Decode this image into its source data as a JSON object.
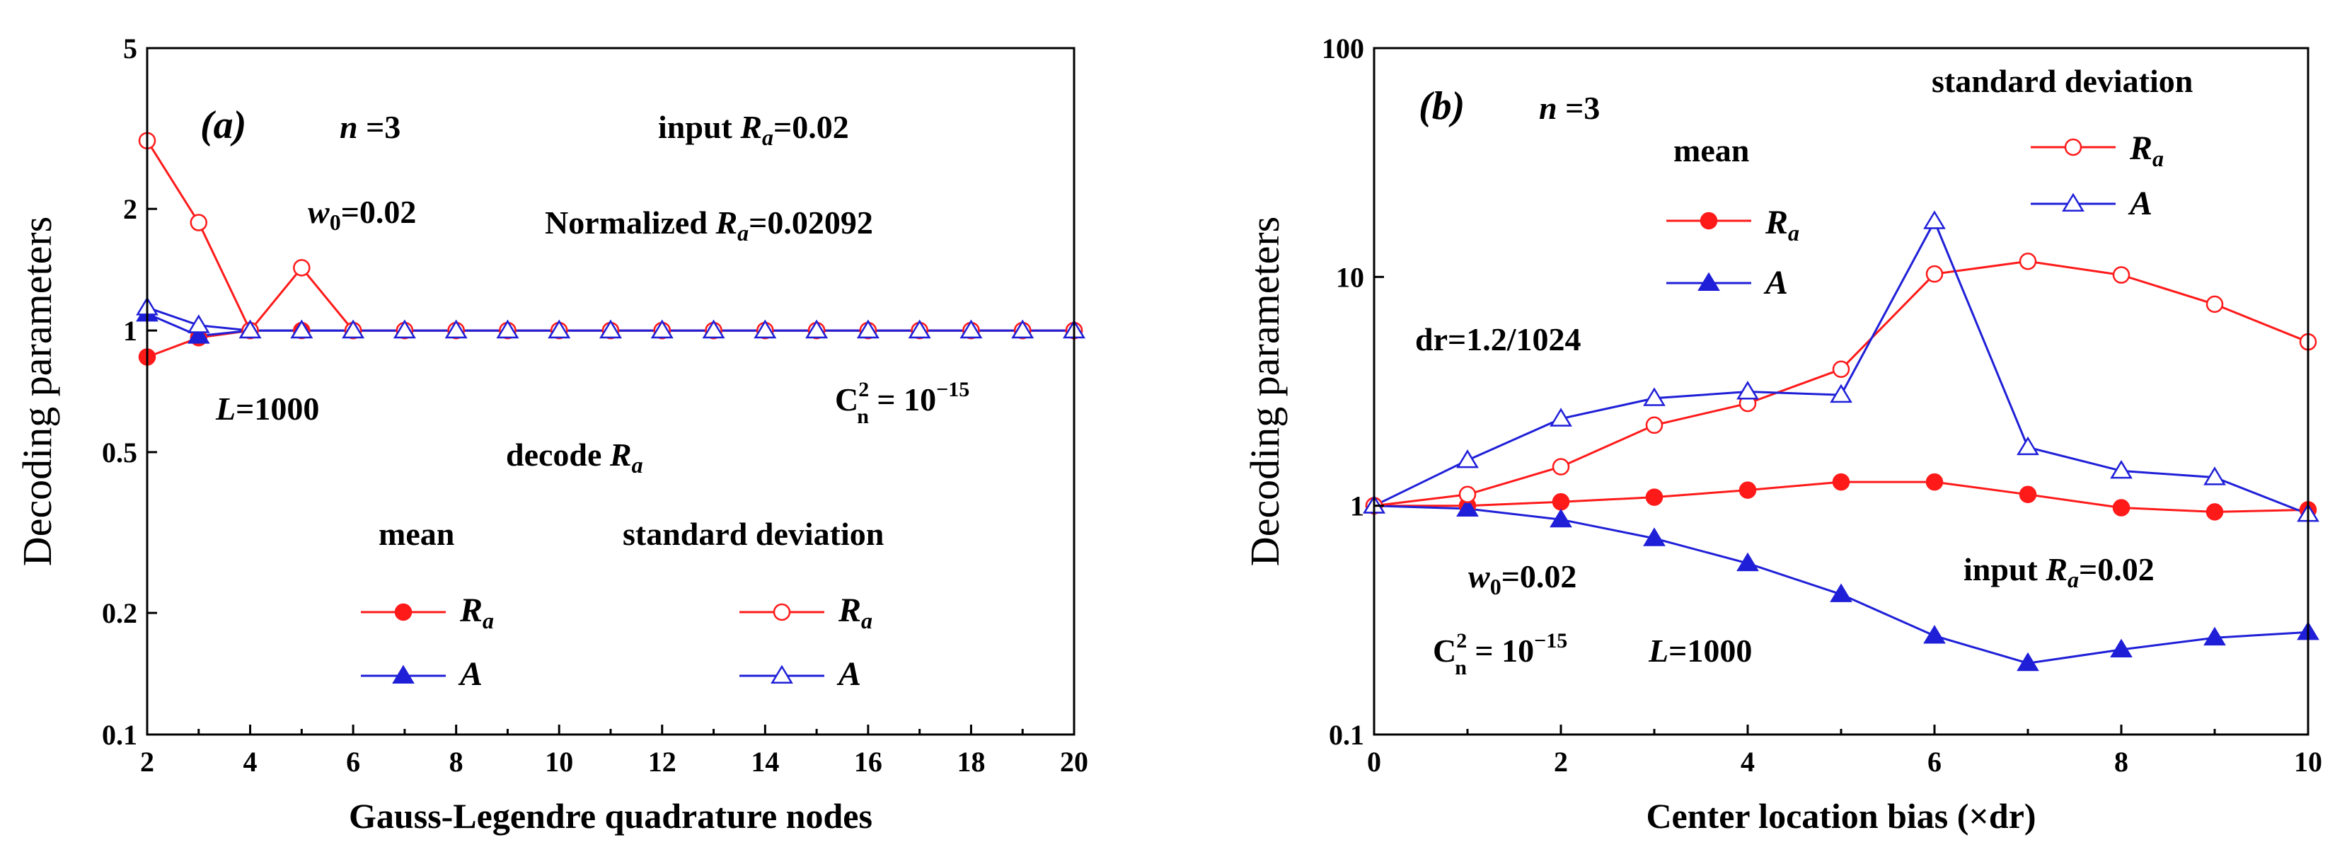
{
  "colors": {
    "red": "#ff1a1a",
    "blue": "#1f1fd8",
    "axis": "#000000"
  },
  "chart_data": [
    {
      "panel": "(a)",
      "type": "line",
      "xlabel": "Gauss-Legendre quadrature nodes",
      "ylabel": "Decoding parameters",
      "yscale": "log",
      "xlim": [
        2,
        20
      ],
      "ylim": [
        0.1,
        5
      ],
      "xticks": [
        2,
        4,
        6,
        8,
        10,
        12,
        14,
        16,
        18,
        20
      ],
      "xtick_labels": [
        "2",
        "4",
        "6",
        "8",
        "10",
        "12",
        "14",
        "16",
        "18",
        "20"
      ],
      "yticks": [
        0.1,
        0.2,
        0.5,
        1,
        2,
        5
      ],
      "ytick_labels": [
        "0.1",
        "0.2",
        "0.5",
        "1",
        "2",
        "5"
      ],
      "x": [
        2,
        3,
        4,
        5,
        6,
        7,
        8,
        9,
        10,
        11,
        12,
        13,
        14,
        15,
        16,
        17,
        18,
        19,
        20
      ],
      "series": [
        {
          "name": "mean R_a",
          "color": "red",
          "marker": "circle",
          "filled": true,
          "values": [
            0.86,
            0.96,
            1.0,
            1.0,
            1.0,
            1.0,
            1.0,
            1.0,
            1.0,
            1.0,
            1.0,
            1.0,
            1.0,
            1.0,
            1.0,
            1.0,
            1.0,
            1.0,
            1.0
          ]
        },
        {
          "name": "mean A",
          "color": "blue",
          "marker": "triangle",
          "filled": true,
          "values": [
            1.1,
            0.97,
            1.0,
            1.0,
            1.0,
            1.0,
            1.0,
            1.0,
            1.0,
            1.0,
            1.0,
            1.0,
            1.0,
            1.0,
            1.0,
            1.0,
            1.0,
            1.0,
            1.0
          ]
        },
        {
          "name": "standard deviation R_a",
          "color": "red",
          "marker": "circle",
          "filled": false,
          "values": [
            2.95,
            1.85,
            1.0,
            1.43,
            1.0,
            1.0,
            1.0,
            1.0,
            1.0,
            1.0,
            1.0,
            1.0,
            1.0,
            1.0,
            1.0,
            1.0,
            1.0,
            1.0,
            1.0
          ]
        },
        {
          "name": "standard deviation A",
          "color": "blue",
          "marker": "triangle",
          "filled": false,
          "values": [
            1.14,
            1.03,
            1.0,
            1.0,
            1.0,
            1.0,
            1.0,
            1.0,
            1.0,
            1.0,
            1.0,
            1.0,
            1.0,
            1.0,
            1.0,
            1.0,
            1.0,
            1.0,
            1.0
          ]
        }
      ],
      "panel_label": "(a)",
      "annotations": {
        "n": "n =3",
        "w0": "w0=0.02",
        "input": "input Ra=0.02",
        "normalized": "Normalized Ra=0.02092",
        "L": "L=1000",
        "cn2": "Cn² = 10⁻¹⁵",
        "decode": "decode Ra"
      },
      "legend": {
        "mean_header": "mean",
        "std_header": "standard deviation",
        "ra_label": "Ra",
        "a_label": "A"
      }
    },
    {
      "panel": "(b)",
      "type": "line",
      "xlabel": "Center location bias (×dr)",
      "ylabel": "Decoding parameters",
      "yscale": "log",
      "xlim": [
        0,
        10
      ],
      "ylim": [
        0.1,
        100
      ],
      "xticks": [
        0,
        2,
        4,
        6,
        8,
        10
      ],
      "xtick_labels": [
        "0",
        "2",
        "4",
        "6",
        "8",
        "10"
      ],
      "yticks": [
        0.1,
        1,
        10,
        100
      ],
      "ytick_labels": [
        "0.1",
        "1",
        "10",
        "100"
      ],
      "x": [
        0,
        1,
        2,
        3,
        4,
        5,
        6,
        7,
        8,
        9,
        10
      ],
      "series": [
        {
          "name": "mean R_a",
          "color": "red",
          "marker": "circle",
          "filled": true,
          "values": [
            1.0,
            1.0,
            1.04,
            1.09,
            1.17,
            1.27,
            1.27,
            1.12,
            0.98,
            0.94,
            0.96
          ]
        },
        {
          "name": "mean A",
          "color": "blue",
          "marker": "triangle",
          "filled": true,
          "values": [
            1.0,
            0.97,
            0.87,
            0.72,
            0.56,
            0.41,
            0.27,
            0.205,
            0.235,
            0.265,
            0.28
          ]
        },
        {
          "name": "standard deviation R_a",
          "color": "red",
          "marker": "circle",
          "filled": false,
          "values": [
            1.0,
            1.12,
            1.48,
            2.25,
            2.8,
            3.95,
            10.3,
            11.7,
            10.2,
            7.6,
            5.2
          ]
        },
        {
          "name": "standard deviation A",
          "color": "blue",
          "marker": "triangle",
          "filled": false,
          "values": [
            1.0,
            1.58,
            2.4,
            2.95,
            3.15,
            3.05,
            17.5,
            1.8,
            1.42,
            1.33,
            0.92
          ]
        }
      ],
      "panel_label": "(b)",
      "annotations": {
        "n": "n =3",
        "dr": "dr=1.2/1024",
        "w0": "w0=0.02",
        "cn2": "Cn² = 10⁻¹⁵",
        "L": "L=1000",
        "input": "input Ra=0.02"
      },
      "legend": {
        "mean_header": "mean",
        "std_header": "standard deviation",
        "ra_label": "Ra",
        "a_label": "A"
      }
    }
  ]
}
